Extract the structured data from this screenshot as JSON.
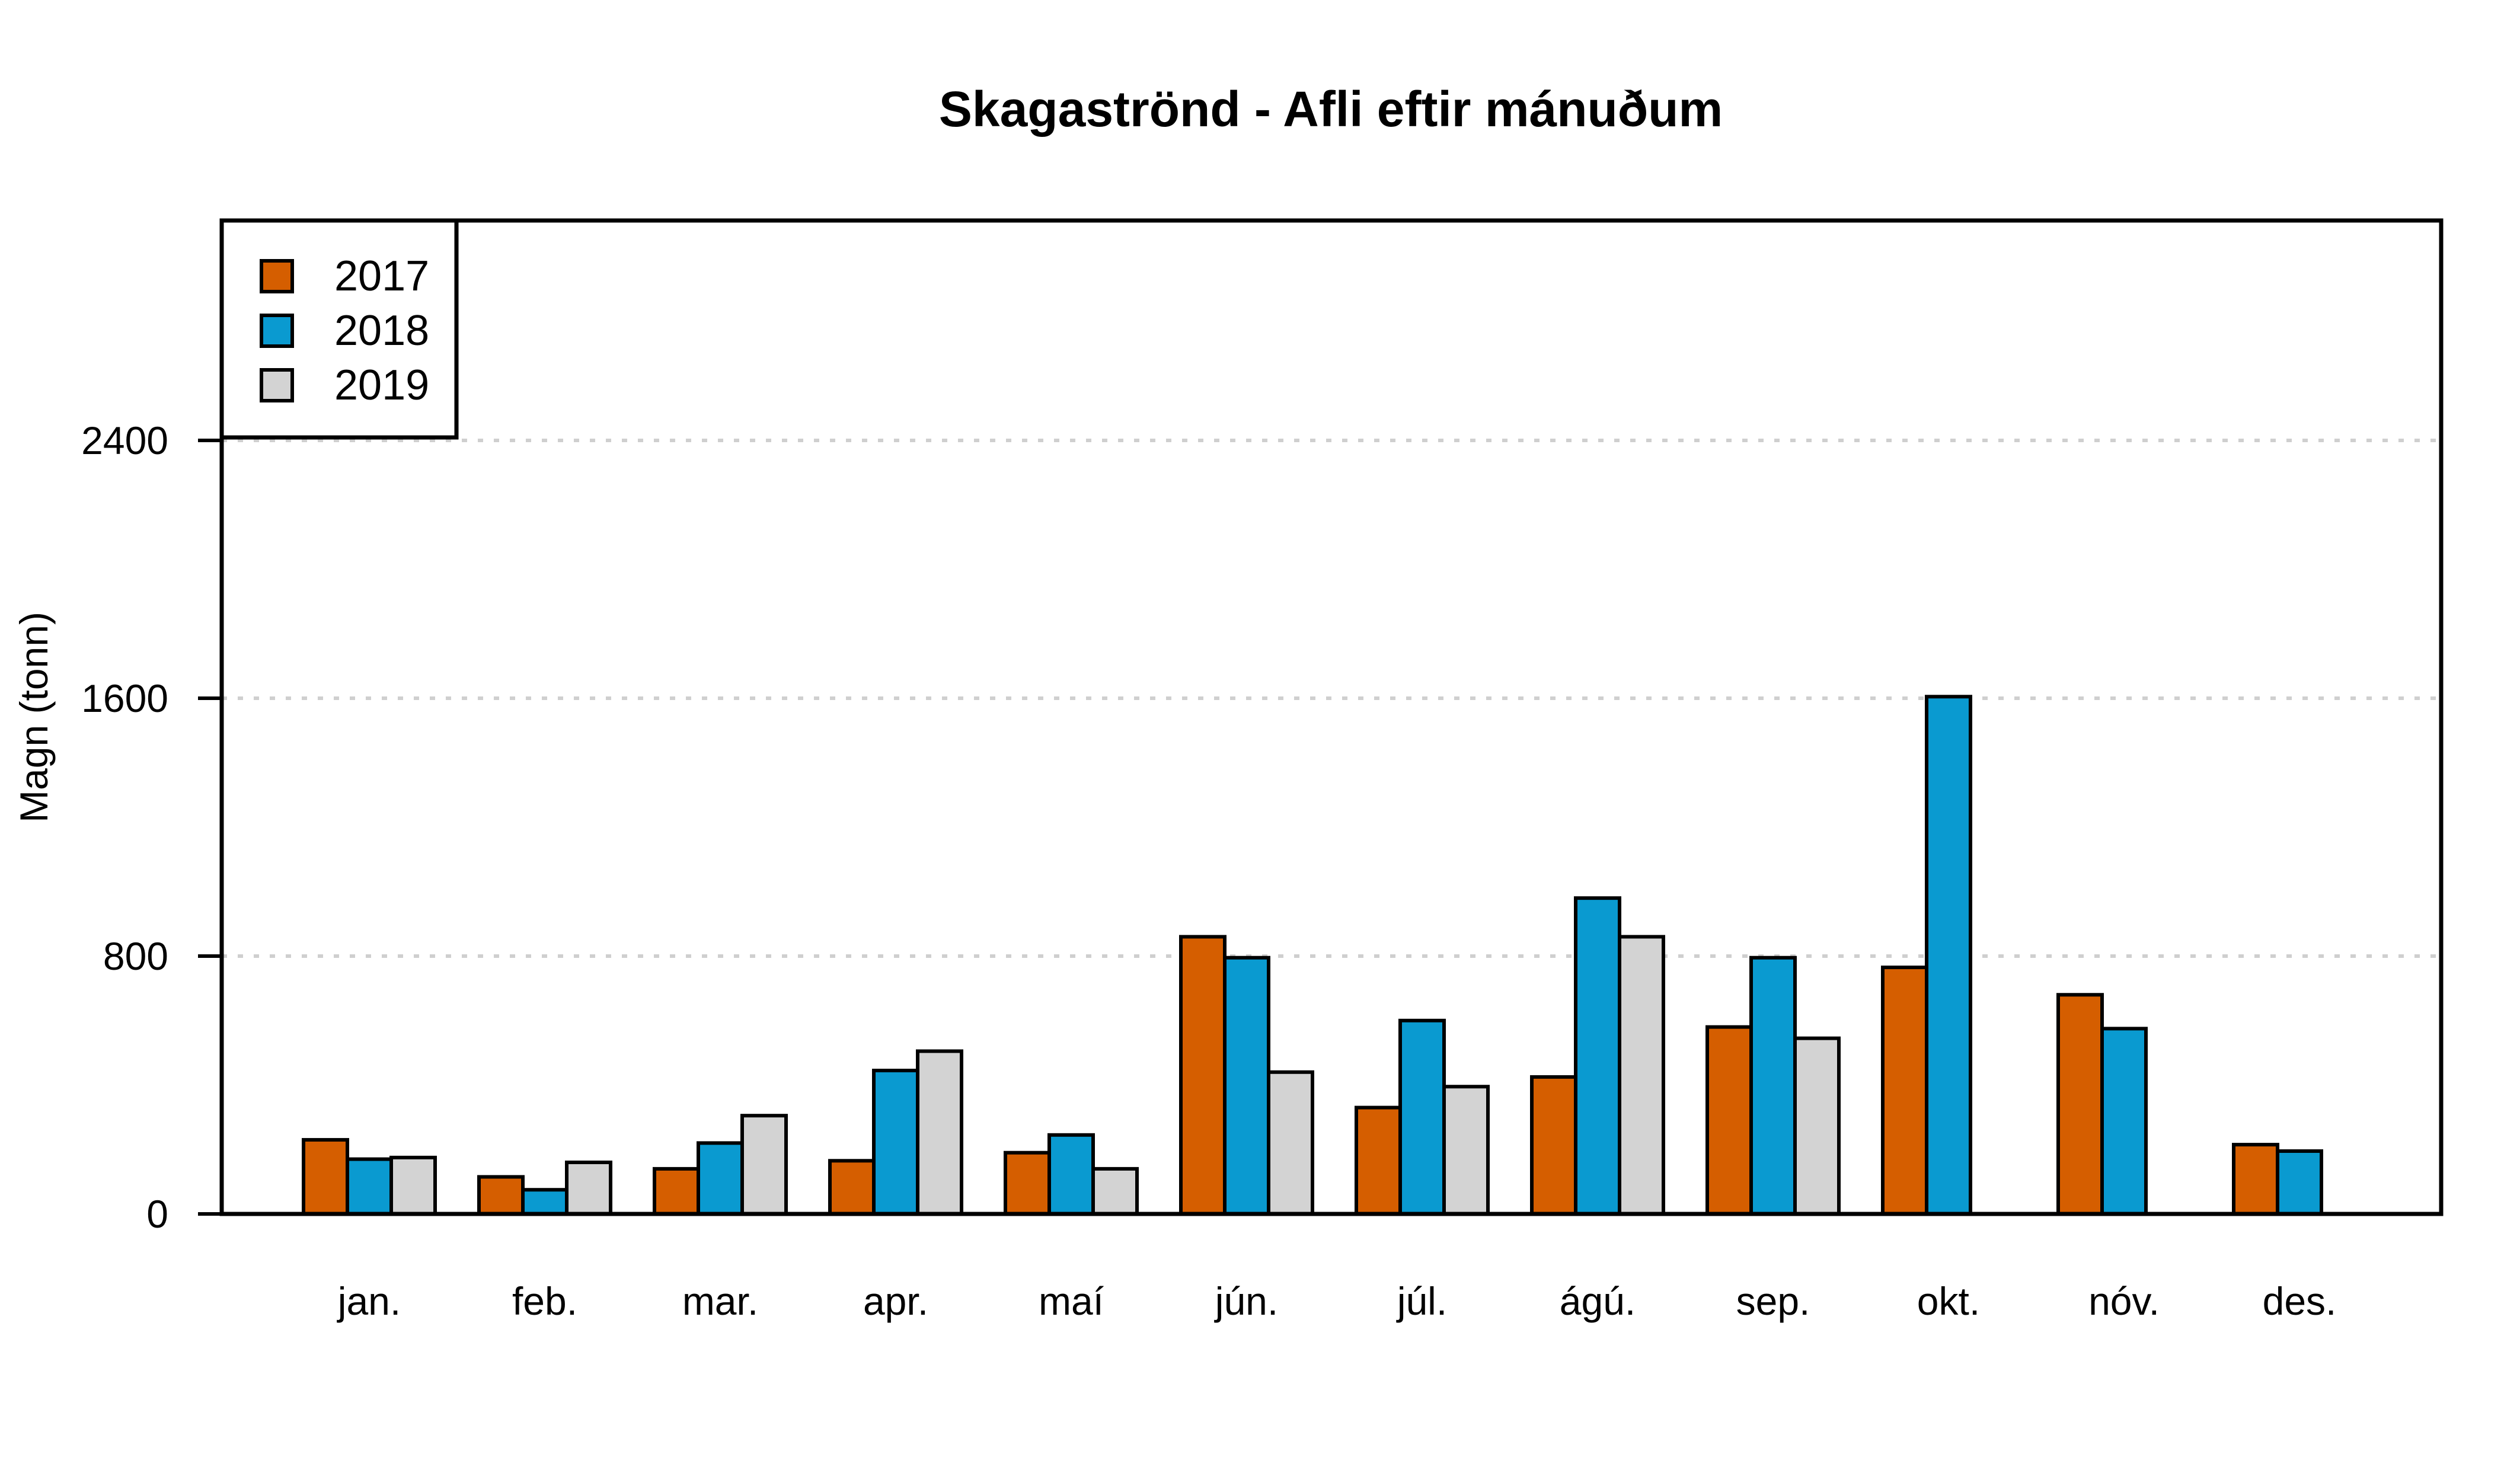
{
  "chart_data": {
    "type": "bar",
    "title": "Skagaströnd - Afli eftir mánuðum",
    "xlabel": "",
    "ylabel": "Magn (tonn)",
    "ylim": [
      0,
      3100
    ],
    "yticks": [
      0,
      800,
      1600,
      2400
    ],
    "grid": "horizontal dotted at y ticks",
    "legend_position": "top-left",
    "categories": [
      "jan.",
      "feb.",
      "mar.",
      "apr.",
      "maí",
      "jún.",
      "júl.",
      "ágú.",
      "sep.",
      "okt.",
      "nóv.",
      "des."
    ],
    "series": [
      {
        "name": "2017",
        "color": "#D55E00",
        "values": [
          230,
          115,
          140,
          165,
          190,
          860,
          330,
          425,
          580,
          765,
          680,
          215
        ]
      },
      {
        "name": "2018",
        "color": "#0A9AD0",
        "values": [
          170,
          75,
          220,
          445,
          245,
          795,
          600,
          980,
          795,
          1605,
          575,
          195
        ]
      },
      {
        "name": "2019",
        "color": "#D3D3D3",
        "values": [
          175,
          160,
          305,
          505,
          140,
          440,
          395,
          860,
          545,
          null,
          null,
          null
        ]
      }
    ]
  }
}
